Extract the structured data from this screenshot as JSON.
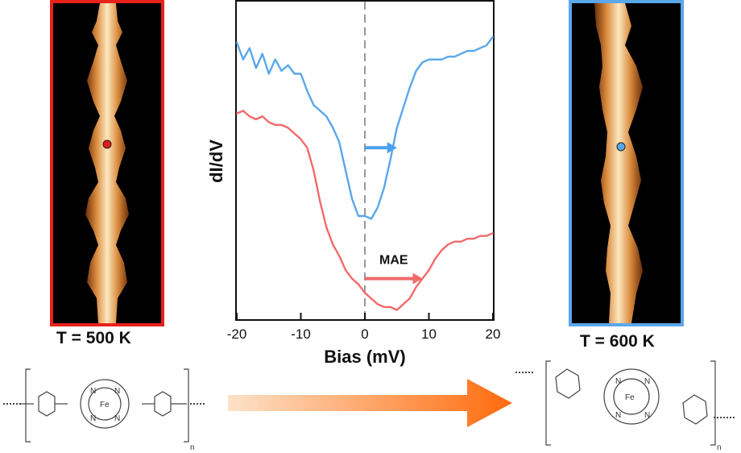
{
  "left_panel": {
    "temperature_label": "T = 500 K",
    "frame_color": "#e8221b",
    "marker_color": "#e11b1b"
  },
  "right_panel": {
    "temperature_label": "T = 600 K",
    "frame_color": "#5aa7ea",
    "marker_color": "#5aa7ea"
  },
  "chart_data": {
    "type": "line",
    "xlabel": "Bias (mV)",
    "ylabel": "dI/dV",
    "xlim": [
      -20,
      20
    ],
    "xticks": [
      -20,
      -10,
      0,
      10,
      20
    ],
    "yticks_shown": false,
    "zero_line": "dashed",
    "series": [
      {
        "color": "#5aa7ea",
        "x": [
          -20,
          -19,
          -18,
          -17,
          -16,
          -15,
          -14,
          -13,
          -12,
          -11,
          -10,
          -9,
          -8,
          -7,
          -6,
          -5,
          -4,
          -3,
          -2,
          -1,
          0,
          1,
          2,
          3,
          4,
          5,
          6,
          7,
          8,
          9,
          10,
          11,
          12,
          13,
          14,
          15,
          16,
          17,
          18,
          19,
          20
        ],
        "y": [
          0.95,
          0.89,
          0.93,
          0.86,
          0.91,
          0.84,
          0.89,
          0.85,
          0.87,
          0.84,
          0.84,
          0.78,
          0.73,
          0.71,
          0.69,
          0.65,
          0.6,
          0.5,
          0.4,
          0.34,
          0.34,
          0.33,
          0.37,
          0.44,
          0.54,
          0.65,
          0.72,
          0.79,
          0.85,
          0.88,
          0.89,
          0.89,
          0.89,
          0.9,
          0.9,
          0.91,
          0.92,
          0.92,
          0.93,
          0.94,
          0.97
        ]
      },
      {
        "color": "#f26a6a",
        "x": [
          -20,
          -19,
          -18,
          -17,
          -16,
          -15,
          -14,
          -13,
          -12,
          -11,
          -10,
          -9,
          -8,
          -7,
          -6,
          -5,
          -4,
          -3,
          -2,
          -1,
          0,
          1,
          2,
          3,
          4,
          5,
          6,
          7,
          8,
          9,
          10,
          11,
          12,
          13,
          14,
          15,
          16,
          17,
          18,
          19,
          20
        ],
        "y": [
          0.7,
          0.71,
          0.69,
          0.68,
          0.69,
          0.67,
          0.66,
          0.66,
          0.65,
          0.63,
          0.61,
          0.58,
          0.5,
          0.39,
          0.3,
          0.24,
          0.2,
          0.15,
          0.12,
          0.1,
          0.07,
          0.05,
          0.03,
          0.02,
          0.02,
          0.01,
          0.03,
          0.05,
          0.09,
          0.12,
          0.15,
          0.19,
          0.22,
          0.24,
          0.25,
          0.25,
          0.26,
          0.26,
          0.27,
          0.27,
          0.28
        ]
      }
    ],
    "annotations": [
      {
        "text": "",
        "kind": "arrow",
        "color": "#4a9ff0",
        "x_from": 0,
        "x_to": 5,
        "y": 0.58
      },
      {
        "text": "MAE",
        "kind": "arrow",
        "color": "#f26a6a",
        "x_from": 0,
        "x_to": 9,
        "y": 0.12
      }
    ]
  },
  "bottom": {
    "left_molecule": {
      "atom_labels": [
        "N",
        "N",
        "N",
        "N",
        "Fe"
      ],
      "subscript": "n"
    },
    "right_molecule": {
      "atom_labels": [
        "N",
        "N",
        "N",
        "N",
        "Fe"
      ],
      "subscript": "n"
    },
    "arrow_colors": [
      "#fde2c8",
      "#ff6a0d"
    ]
  }
}
